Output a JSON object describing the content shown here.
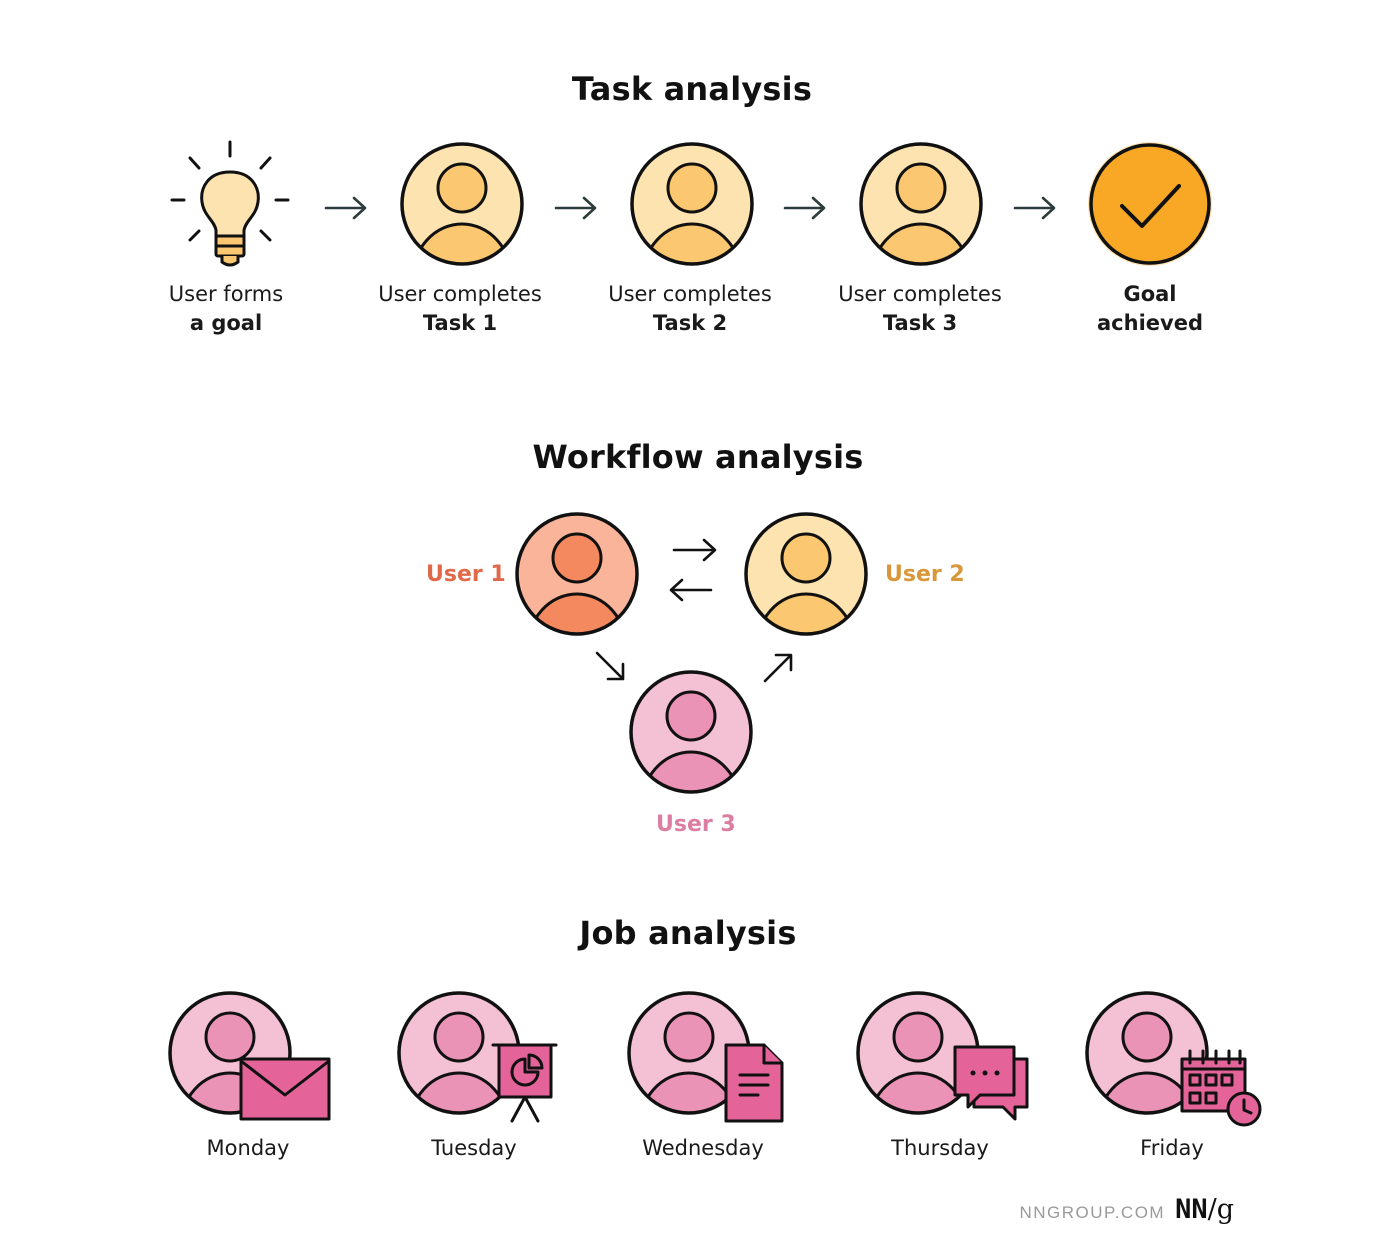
{
  "task_analysis": {
    "title": "Task analysis",
    "steps": [
      {
        "line1": "User forms",
        "line2": "a goal"
      },
      {
        "line1": "User completes",
        "line2": "Task 1"
      },
      {
        "line1": "User completes",
        "line2": "Task 2"
      },
      {
        "line1": "User completes",
        "line2": "Task 3"
      },
      {
        "line1": "Goal",
        "line2": "achieved"
      }
    ]
  },
  "workflow_analysis": {
    "title": "Workflow analysis",
    "users": [
      {
        "label": "User 1",
        "color": "#e0694a"
      },
      {
        "label": "User 2",
        "color": "#d9973a"
      },
      {
        "label": "User 3",
        "color": "#dc7ea2"
      }
    ]
  },
  "job_analysis": {
    "title": "Job analysis",
    "days": [
      {
        "label": "Monday",
        "icon": "envelope-icon"
      },
      {
        "label": "Tuesday",
        "icon": "presentation-board-icon"
      },
      {
        "label": "Wednesday",
        "icon": "document-icon"
      },
      {
        "label": "Thursday",
        "icon": "chat-bubbles-icon"
      },
      {
        "label": "Friday",
        "icon": "calendar-clock-icon"
      }
    ]
  },
  "footer": {
    "site": "NNGROUP.COM",
    "logo_main": "NN",
    "logo_slash": "/g"
  },
  "colors": {
    "yellow_bg": "#fde3b0",
    "yellow_body": "#fbc770",
    "orange_check": "#f9a825",
    "salmon_bg": "#f9b49a",
    "salmon_body": "#f4895f",
    "pink_bg": "#f4c0d4",
    "pink_body": "#eb93b6",
    "magenta_icon": "#e4649a"
  }
}
